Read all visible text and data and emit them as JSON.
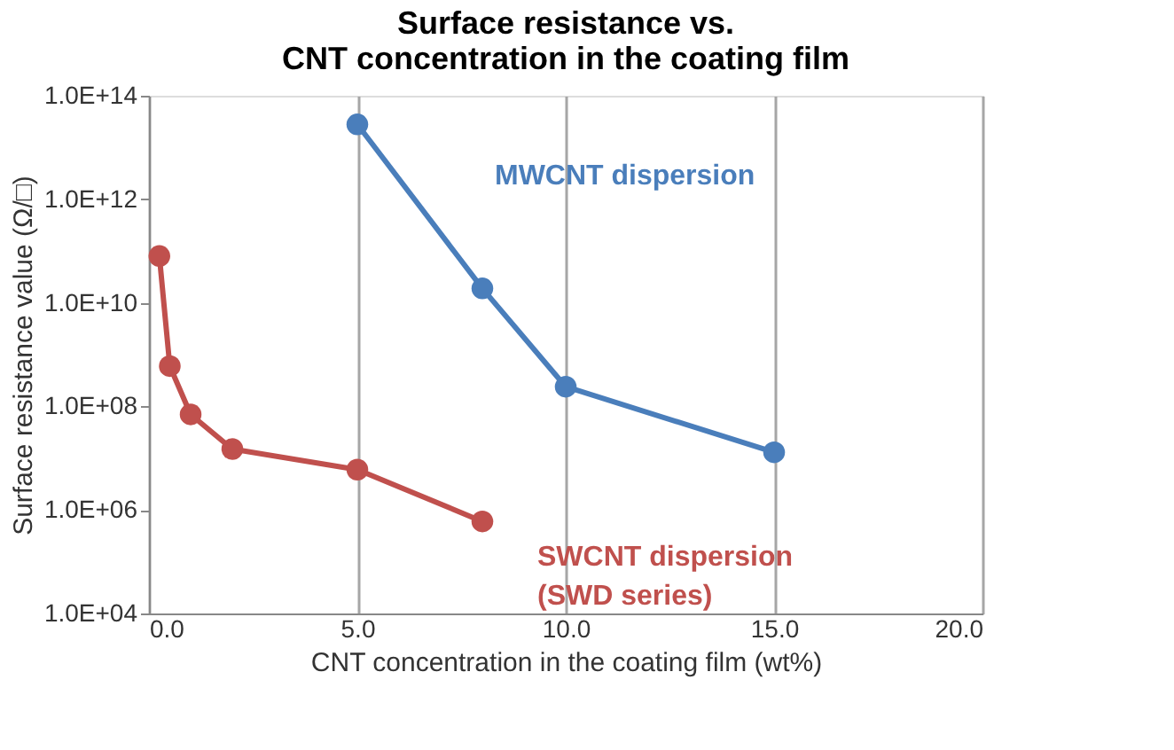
{
  "chart_data": {
    "type": "line",
    "title": "Surface resistance vs.\nCNT concentration in the coating film",
    "xlabel": "CNT concentration in the coating film (wt%)",
    "ylabel": "Surface resistance value (Ω/□)",
    "series": [
      {
        "name": "MWCNT dispersion",
        "color": "#4a7ebb",
        "x": [
          5,
          8,
          10,
          15
        ],
        "values": [
          28000000000000.0,
          19000000000.0,
          240000000.0,
          13000000.0
        ]
      },
      {
        "name": "SWCNT dispersion\n(SWD series)",
        "color": "#c0504d",
        "x": [
          0.25,
          0.5,
          1,
          2,
          5,
          8
        ],
        "values": [
          80000000000.0,
          600000000.0,
          70000000.0,
          15000000.0,
          6000000.0,
          600000.0
        ]
      }
    ],
    "log": "y",
    "xlim": [
      0,
      20
    ],
    "ylim": [
      10000.0,
      100000000000000.0
    ],
    "xticks": [
      {
        "value": 0,
        "label": "0.0"
      },
      {
        "value": 5,
        "label": "5.0"
      },
      {
        "value": 10,
        "label": "10.0"
      },
      {
        "value": 15,
        "label": "15.0"
      },
      {
        "value": 20,
        "label": "20.0"
      }
    ],
    "yticks": [
      {
        "value": 10000.0,
        "label": "1.0E+04"
      },
      {
        "value": 1000000.0,
        "label": "1.0E+06"
      },
      {
        "value": 100000000.0,
        "label": "1.0E+08"
      },
      {
        "value": 10000000000.0,
        "label": "1.0E+10"
      },
      {
        "value": 1000000000000.0,
        "label": "1.0E+12"
      },
      {
        "value": 100000000000000.0,
        "label": "1.0E+14"
      }
    ],
    "grid": "x",
    "marker": "circle",
    "line_style": "solid"
  }
}
